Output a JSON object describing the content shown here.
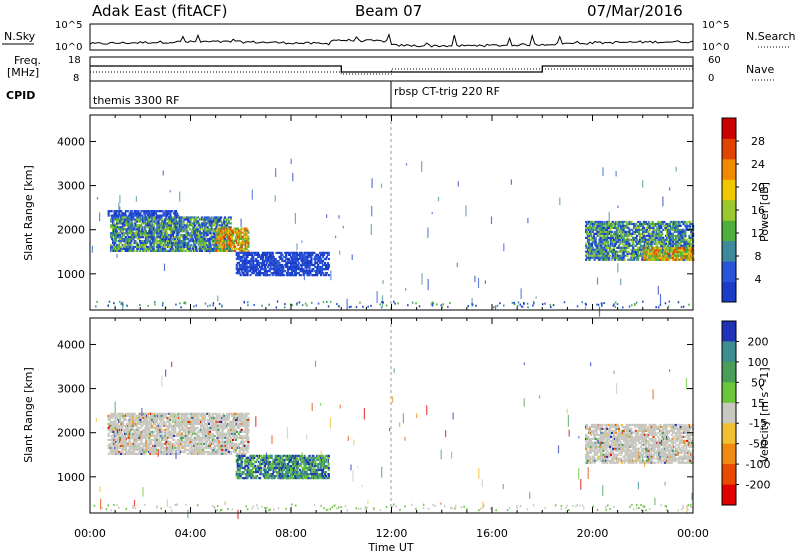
{
  "header": {
    "station": "Adak East (fitACF)",
    "beam": "Beam 07",
    "date": "07/Mar/2016"
  },
  "panels": {
    "nsky_label": "N.Sky",
    "nsearch_label": "N.Search",
    "freq_label_1": "Freq.",
    "freq_label_2": "[MHz]",
    "nave_label": "Nave",
    "cpid_label": "CPID",
    "nsky_ticks": [
      "10^5",
      "10^0"
    ],
    "nsearch_ticks": [
      "10^5",
      "10^0"
    ],
    "freq_ticks": [
      "18",
      "8"
    ],
    "nave_ticks": [
      "60",
      "0"
    ],
    "cpid_names": [
      "themis 3300 RF",
      "rbsp CT-trig 220 RF"
    ]
  },
  "colors": {
    "power_scale": [
      "#1a3cc8",
      "#2a55d8",
      "#3d8a9a",
      "#4fae3e",
      "#9ac82e",
      "#f0c800",
      "#f28a00",
      "#e04500",
      "#cc0000"
    ],
    "velocity_scale": [
      "#2033b8",
      "#3d8e8e",
      "#4a9e5a",
      "#6cc63c",
      "#c8c8c0",
      "#f0c030",
      "#f08a10",
      "#e84a00",
      "#e00000"
    ],
    "ground_scatter": "#c8c8c0"
  },
  "chart_data": [
    {
      "type": "heatmap",
      "title": "",
      "xlabel": "Time UT",
      "ylabel": "Slant Range [km]",
      "x_ticks": [
        "00:00",
        "04:00",
        "08:00",
        "12:00",
        "16:00",
        "20:00",
        "00:00"
      ],
      "y_ticks": [
        "1000",
        "2000",
        "3000",
        "4000"
      ],
      "ylim": [
        180,
        4600
      ],
      "colorbar_label": "Power [dB]",
      "colorbar_ticks": [
        "4",
        "8",
        "12",
        "16",
        "20",
        "24",
        "28"
      ],
      "regions": [
        {
          "t0": 0.7,
          "t1": 3.5,
          "r0": 2300,
          "r1": 2450,
          "value": "weak"
        },
        {
          "t0": 0.8,
          "t1": 5.6,
          "r0": 1500,
          "r1": 2300,
          "value": "moderate"
        },
        {
          "t0": 5.0,
          "t1": 6.3,
          "r0": 1500,
          "r1": 2050,
          "value": "strong"
        },
        {
          "t0": 5.8,
          "t1": 9.5,
          "r0": 950,
          "r1": 1500,
          "value": "weak"
        },
        {
          "t0": 19.7,
          "t1": 24.0,
          "r0": 1300,
          "r1": 2200,
          "value": "moderate"
        },
        {
          "t0": 22.0,
          "t1": 24.0,
          "r0": 1300,
          "r1": 1600,
          "value": "strong"
        }
      ]
    },
    {
      "type": "heatmap",
      "title": "",
      "xlabel": "Time UT",
      "ylabel": "Slant Range [km]",
      "x_ticks": [
        "00:00",
        "04:00",
        "08:00",
        "12:00",
        "16:00",
        "20:00",
        "00:00"
      ],
      "y_ticks": [
        "1000",
        "2000",
        "3000",
        "4000"
      ],
      "ylim": [
        180,
        4600
      ],
      "colorbar_label": "Velocity [m s^-1]",
      "colorbar_ticks": [
        "200",
        "100",
        "50",
        "15",
        "-15",
        "-50",
        "-100",
        "-200"
      ],
      "regions": [
        {
          "t0": 0.7,
          "t1": 6.3,
          "r0": 1500,
          "r1": 2450,
          "value": "ground scatter"
        },
        {
          "t0": 5.8,
          "t1": 9.5,
          "r0": 950,
          "r1": 1500,
          "value": "positive"
        },
        {
          "t0": 19.7,
          "t1": 24.0,
          "r0": 1300,
          "r1": 2200,
          "value": "ground scatter"
        }
      ]
    }
  ]
}
